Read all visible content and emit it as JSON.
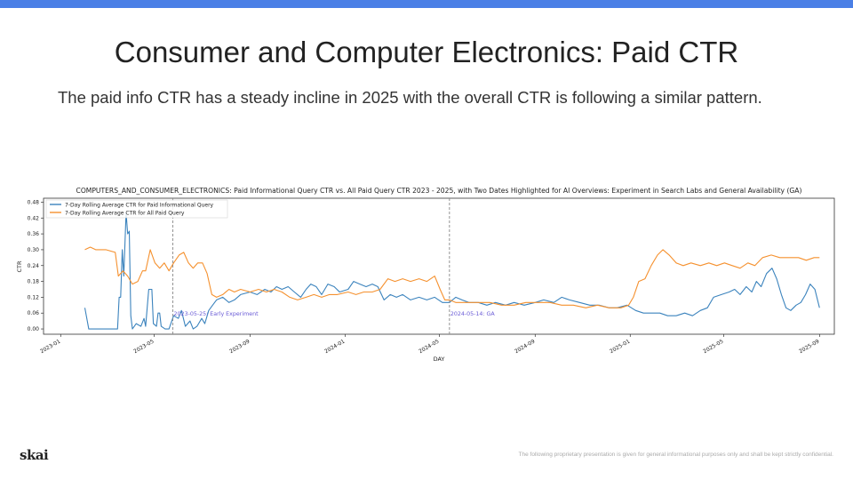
{
  "slide": {
    "title": "Consumer and Computer Electronics: Paid CTR",
    "subtitle": "The paid info CTR has a steady incline in 2025 with the overall CTR is following a similar pattern.",
    "logo": "skai",
    "footer": "The following proprietary presentation is given for general informational purposes only and shall be kept strictly confidential."
  },
  "colors": {
    "accent_bar": "#4a7fe6",
    "series_info": "#3b83bd",
    "series_all": "#f5912f",
    "vline": "#888888",
    "annotation": "#6a5bd6"
  },
  "chart_data": {
    "type": "line",
    "title": "COMPUTERS_AND_CONSUMER_ELECTRONICS: Paid Informational Query CTR vs. All Paid Query CTR 2023 - 2025, with Two Dates Highlighted for AI Overviews: Experiment in Search Labs and General Availability (GA)",
    "xlabel": "DAY",
    "ylabel": "CTR",
    "xlim": [
      "2022-12-10",
      "2025-09-20"
    ],
    "ylim": [
      -0.02,
      0.495
    ],
    "yticks": [
      0.0,
      0.06,
      0.12,
      0.18,
      0.24,
      0.3,
      0.36,
      0.42,
      0.48
    ],
    "ytick_labels": [
      "0.00",
      "0.06",
      "0.12",
      "0.18",
      "0.24",
      "0.30",
      "0.36",
      "0.42",
      "0.48"
    ],
    "xticks": [
      "2023-01-01",
      "2023-05-01",
      "2023-09-01",
      "2024-01-01",
      "2024-05-01",
      "2024-09-01",
      "2025-01-01",
      "2025-05-01",
      "2025-09-01"
    ],
    "xtick_labels": [
      "2023-01",
      "2023-05",
      "2023-09",
      "2024-01",
      "2024-05",
      "2024-09",
      "2025-01",
      "2025-05",
      "2025-09"
    ],
    "legend_position": "top-left",
    "grid": false,
    "vlines": [
      {
        "date": "2023-05-25",
        "label": "2023-05-25: Early Experiment"
      },
      {
        "date": "2024-05-14",
        "label": "2024-05-14: GA"
      }
    ],
    "series": [
      {
        "name": "7-Day Rolling Average CTR for Paid Informational Query",
        "color": "#3b83bd",
        "points": [
          [
            "2023-02-01",
            0.08
          ],
          [
            "2023-02-06",
            0.0
          ],
          [
            "2023-02-20",
            0.0
          ],
          [
            "2023-03-10",
            0.0
          ],
          [
            "2023-03-15",
            0.0
          ],
          [
            "2023-03-17",
            0.12
          ],
          [
            "2023-03-19",
            0.12
          ],
          [
            "2023-03-21",
            0.3
          ],
          [
            "2023-03-23",
            0.2
          ],
          [
            "2023-03-26",
            0.44
          ],
          [
            "2023-03-28",
            0.36
          ],
          [
            "2023-03-30",
            0.37
          ],
          [
            "2023-04-01",
            0.05
          ],
          [
            "2023-04-03",
            0.0
          ],
          [
            "2023-04-08",
            0.02
          ],
          [
            "2023-04-14",
            0.01
          ],
          [
            "2023-04-18",
            0.04
          ],
          [
            "2023-04-20",
            0.01
          ],
          [
            "2023-04-24",
            0.15
          ],
          [
            "2023-04-28",
            0.15
          ],
          [
            "2023-04-30",
            0.02
          ],
          [
            "2023-05-04",
            0.01
          ],
          [
            "2023-05-06",
            0.06
          ],
          [
            "2023-05-08",
            0.06
          ],
          [
            "2023-05-10",
            0.01
          ],
          [
            "2023-05-15",
            0.0
          ],
          [
            "2023-05-20",
            0.0
          ],
          [
            "2023-05-26",
            0.05
          ],
          [
            "2023-06-01",
            0.04
          ],
          [
            "2023-06-05",
            0.07
          ],
          [
            "2023-06-10",
            0.01
          ],
          [
            "2023-06-16",
            0.03
          ],
          [
            "2023-06-20",
            0.0
          ],
          [
            "2023-06-25",
            0.01
          ],
          [
            "2023-07-01",
            0.04
          ],
          [
            "2023-07-05",
            0.02
          ],
          [
            "2023-07-10",
            0.07
          ],
          [
            "2023-07-15",
            0.09
          ],
          [
            "2023-07-20",
            0.11
          ],
          [
            "2023-07-28",
            0.12
          ],
          [
            "2023-08-05",
            0.1
          ],
          [
            "2023-08-12",
            0.11
          ],
          [
            "2023-08-20",
            0.13
          ],
          [
            "2023-09-01",
            0.14
          ],
          [
            "2023-09-10",
            0.13
          ],
          [
            "2023-09-20",
            0.15
          ],
          [
            "2023-09-28",
            0.14
          ],
          [
            "2023-10-05",
            0.16
          ],
          [
            "2023-10-12",
            0.15
          ],
          [
            "2023-10-20",
            0.16
          ],
          [
            "2023-10-28",
            0.14
          ],
          [
            "2023-11-05",
            0.12
          ],
          [
            "2023-11-12",
            0.15
          ],
          [
            "2023-11-18",
            0.17
          ],
          [
            "2023-11-25",
            0.16
          ],
          [
            "2023-12-02",
            0.13
          ],
          [
            "2023-12-10",
            0.17
          ],
          [
            "2023-12-18",
            0.16
          ],
          [
            "2023-12-25",
            0.14
          ],
          [
            "2024-01-05",
            0.15
          ],
          [
            "2024-01-12",
            0.18
          ],
          [
            "2024-01-20",
            0.17
          ],
          [
            "2024-01-28",
            0.16
          ],
          [
            "2024-02-05",
            0.17
          ],
          [
            "2024-02-12",
            0.16
          ],
          [
            "2024-02-20",
            0.11
          ],
          [
            "2024-02-28",
            0.13
          ],
          [
            "2024-03-07",
            0.12
          ],
          [
            "2024-03-15",
            0.13
          ],
          [
            "2024-03-25",
            0.11
          ],
          [
            "2024-04-05",
            0.12
          ],
          [
            "2024-04-15",
            0.11
          ],
          [
            "2024-04-25",
            0.12
          ],
          [
            "2024-05-05",
            0.1
          ],
          [
            "2024-05-14",
            0.1
          ],
          [
            "2024-05-22",
            0.12
          ],
          [
            "2024-05-30",
            0.11
          ],
          [
            "2024-06-08",
            0.1
          ],
          [
            "2024-06-20",
            0.1
          ],
          [
            "2024-07-01",
            0.09
          ],
          [
            "2024-07-12",
            0.1
          ],
          [
            "2024-07-25",
            0.09
          ],
          [
            "2024-08-05",
            0.1
          ],
          [
            "2024-08-18",
            0.09
          ],
          [
            "2024-09-01",
            0.1
          ],
          [
            "2024-09-12",
            0.11
          ],
          [
            "2024-09-25",
            0.1
          ],
          [
            "2024-10-05",
            0.12
          ],
          [
            "2024-10-15",
            0.11
          ],
          [
            "2024-10-28",
            0.1
          ],
          [
            "2024-11-10",
            0.09
          ],
          [
            "2024-11-22",
            0.09
          ],
          [
            "2024-12-05",
            0.08
          ],
          [
            "2024-12-15",
            0.08
          ],
          [
            "2024-12-28",
            0.09
          ],
          [
            "2025-01-08",
            0.07
          ],
          [
            "2025-01-18",
            0.06
          ],
          [
            "2025-01-28",
            0.06
          ],
          [
            "2025-02-08",
            0.06
          ],
          [
            "2025-02-18",
            0.05
          ],
          [
            "2025-03-01",
            0.05
          ],
          [
            "2025-03-12",
            0.06
          ],
          [
            "2025-03-22",
            0.05
          ],
          [
            "2025-04-01",
            0.07
          ],
          [
            "2025-04-10",
            0.08
          ],
          [
            "2025-04-18",
            0.12
          ],
          [
            "2025-04-28",
            0.13
          ],
          [
            "2025-05-08",
            0.14
          ],
          [
            "2025-05-15",
            0.15
          ],
          [
            "2025-05-22",
            0.13
          ],
          [
            "2025-05-30",
            0.16
          ],
          [
            "2025-06-06",
            0.14
          ],
          [
            "2025-06-12",
            0.18
          ],
          [
            "2025-06-18",
            0.16
          ],
          [
            "2025-06-25",
            0.21
          ],
          [
            "2025-07-02",
            0.23
          ],
          [
            "2025-07-08",
            0.19
          ],
          [
            "2025-07-14",
            0.13
          ],
          [
            "2025-07-20",
            0.08
          ],
          [
            "2025-07-26",
            0.07
          ],
          [
            "2025-08-02",
            0.09
          ],
          [
            "2025-08-08",
            0.1
          ],
          [
            "2025-08-14",
            0.13
          ],
          [
            "2025-08-20",
            0.17
          ],
          [
            "2025-08-26",
            0.15
          ],
          [
            "2025-09-01",
            0.08
          ]
        ]
      },
      {
        "name": "7-Day Rolling Average CTR for All Paid Query",
        "color": "#f5912f",
        "points": [
          [
            "2023-02-01",
            0.3
          ],
          [
            "2023-02-08",
            0.31
          ],
          [
            "2023-02-15",
            0.3
          ],
          [
            "2023-02-28",
            0.3
          ],
          [
            "2023-03-12",
            0.29
          ],
          [
            "2023-03-16",
            0.2
          ],
          [
            "2023-03-22",
            0.22
          ],
          [
            "2023-03-28",
            0.2
          ],
          [
            "2023-04-03",
            0.17
          ],
          [
            "2023-04-10",
            0.18
          ],
          [
            "2023-04-16",
            0.22
          ],
          [
            "2023-04-20",
            0.22
          ],
          [
            "2023-04-26",
            0.3
          ],
          [
            "2023-05-02",
            0.25
          ],
          [
            "2023-05-08",
            0.23
          ],
          [
            "2023-05-14",
            0.25
          ],
          [
            "2023-05-20",
            0.22
          ],
          [
            "2023-05-26",
            0.25
          ],
          [
            "2023-06-02",
            0.28
          ],
          [
            "2023-06-08",
            0.29
          ],
          [
            "2023-06-14",
            0.25
          ],
          [
            "2023-06-20",
            0.23
          ],
          [
            "2023-06-26",
            0.25
          ],
          [
            "2023-07-02",
            0.25
          ],
          [
            "2023-07-08",
            0.21
          ],
          [
            "2023-07-14",
            0.13
          ],
          [
            "2023-07-20",
            0.12
          ],
          [
            "2023-07-28",
            0.13
          ],
          [
            "2023-08-05",
            0.15
          ],
          [
            "2023-08-12",
            0.14
          ],
          [
            "2023-08-20",
            0.15
          ],
          [
            "2023-09-01",
            0.14
          ],
          [
            "2023-09-12",
            0.15
          ],
          [
            "2023-09-22",
            0.14
          ],
          [
            "2023-10-02",
            0.15
          ],
          [
            "2023-10-12",
            0.14
          ],
          [
            "2023-10-22",
            0.12
          ],
          [
            "2023-11-01",
            0.11
          ],
          [
            "2023-11-12",
            0.12
          ],
          [
            "2023-11-22",
            0.13
          ],
          [
            "2023-12-02",
            0.12
          ],
          [
            "2023-12-12",
            0.13
          ],
          [
            "2023-12-22",
            0.13
          ],
          [
            "2024-01-05",
            0.14
          ],
          [
            "2024-01-15",
            0.13
          ],
          [
            "2024-01-25",
            0.14
          ],
          [
            "2024-02-05",
            0.14
          ],
          [
            "2024-02-15",
            0.15
          ],
          [
            "2024-02-25",
            0.19
          ],
          [
            "2024-03-05",
            0.18
          ],
          [
            "2024-03-15",
            0.19
          ],
          [
            "2024-03-25",
            0.18
          ],
          [
            "2024-04-05",
            0.19
          ],
          [
            "2024-04-15",
            0.18
          ],
          [
            "2024-04-25",
            0.2
          ],
          [
            "2024-05-02",
            0.15
          ],
          [
            "2024-05-08",
            0.11
          ],
          [
            "2024-05-14",
            0.11
          ],
          [
            "2024-05-22",
            0.1
          ],
          [
            "2024-06-05",
            0.1
          ],
          [
            "2024-06-20",
            0.1
          ],
          [
            "2024-07-05",
            0.1
          ],
          [
            "2024-07-20",
            0.09
          ],
          [
            "2024-08-05",
            0.09
          ],
          [
            "2024-08-20",
            0.1
          ],
          [
            "2024-09-05",
            0.1
          ],
          [
            "2024-09-20",
            0.1
          ],
          [
            "2024-10-05",
            0.09
          ],
          [
            "2024-10-20",
            0.09
          ],
          [
            "2024-11-05",
            0.08
          ],
          [
            "2024-11-20",
            0.09
          ],
          [
            "2024-12-05",
            0.08
          ],
          [
            "2024-12-20",
            0.08
          ],
          [
            "2024-12-30",
            0.09
          ],
          [
            "2025-01-05",
            0.12
          ],
          [
            "2025-01-12",
            0.18
          ],
          [
            "2025-01-20",
            0.19
          ],
          [
            "2025-01-28",
            0.24
          ],
          [
            "2025-02-05",
            0.28
          ],
          [
            "2025-02-12",
            0.3
          ],
          [
            "2025-02-20",
            0.28
          ],
          [
            "2025-03-01",
            0.25
          ],
          [
            "2025-03-10",
            0.24
          ],
          [
            "2025-03-20",
            0.25
          ],
          [
            "2025-04-01",
            0.24
          ],
          [
            "2025-04-12",
            0.25
          ],
          [
            "2025-04-22",
            0.24
          ],
          [
            "2025-05-02",
            0.25
          ],
          [
            "2025-05-12",
            0.24
          ],
          [
            "2025-05-22",
            0.23
          ],
          [
            "2025-06-01",
            0.25
          ],
          [
            "2025-06-10",
            0.24
          ],
          [
            "2025-06-20",
            0.27
          ],
          [
            "2025-07-01",
            0.28
          ],
          [
            "2025-07-12",
            0.27
          ],
          [
            "2025-07-25",
            0.27
          ],
          [
            "2025-08-05",
            0.27
          ],
          [
            "2025-08-15",
            0.26
          ],
          [
            "2025-08-25",
            0.27
          ],
          [
            "2025-09-01",
            0.27
          ]
        ]
      }
    ]
  }
}
